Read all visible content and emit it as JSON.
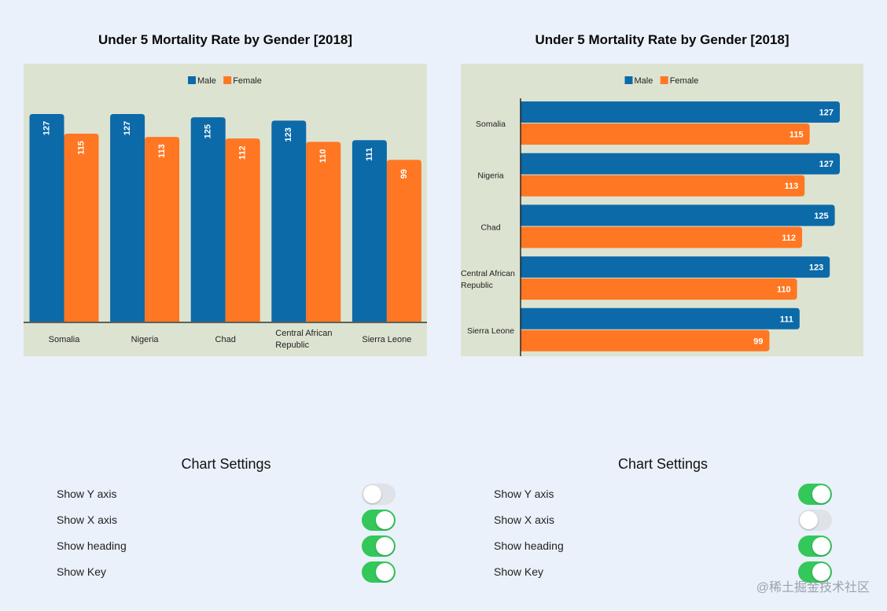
{
  "colors": {
    "male": "#0c6aa9",
    "female": "#ff7722",
    "plot_bg": "#dde3d1",
    "page_bg": "#eaf1fa",
    "toggle_on": "#34c759",
    "toggle_off": "#dfe2e8"
  },
  "chart_data": [
    {
      "type": "bar",
      "orientation": "vertical",
      "title": "Under 5 Mortality Rate by Gender [2018]",
      "categories": [
        "Somalia",
        "Nigeria",
        "Chad",
        "Central African Republic",
        "Sierra Leone"
      ],
      "series": [
        {
          "name": "Male",
          "values": [
            127,
            127,
            125,
            123,
            111
          ]
        },
        {
          "name": "Female",
          "values": [
            115,
            113,
            112,
            110,
            99
          ]
        }
      ],
      "legend_position": "top-center",
      "ylim": [
        0,
        127
      ]
    },
    {
      "type": "bar",
      "orientation": "horizontal",
      "title": "Under 5 Mortality Rate by Gender [2018]",
      "categories": [
        "Somalia",
        "Nigeria",
        "Chad",
        "Central African Republic",
        "Sierra Leone"
      ],
      "series": [
        {
          "name": "Male",
          "values": [
            127,
            127,
            125,
            123,
            111
          ]
        },
        {
          "name": "Female",
          "values": [
            115,
            113,
            112,
            110,
            99
          ]
        }
      ],
      "legend_position": "top-center",
      "xlim": [
        0,
        127
      ]
    }
  ],
  "settings": [
    {
      "title": "Chart Settings",
      "items": [
        {
          "label": "Show Y axis",
          "on": false
        },
        {
          "label": "Show X axis",
          "on": true
        },
        {
          "label": "Show heading",
          "on": true
        },
        {
          "label": "Show Key",
          "on": true
        }
      ]
    },
    {
      "title": "Chart Settings",
      "items": [
        {
          "label": "Show Y axis",
          "on": true
        },
        {
          "label": "Show X axis",
          "on": false
        },
        {
          "label": "Show heading",
          "on": true
        },
        {
          "label": "Show Key",
          "on": true
        }
      ]
    }
  ],
  "watermark": "@稀土掘金技术社区"
}
